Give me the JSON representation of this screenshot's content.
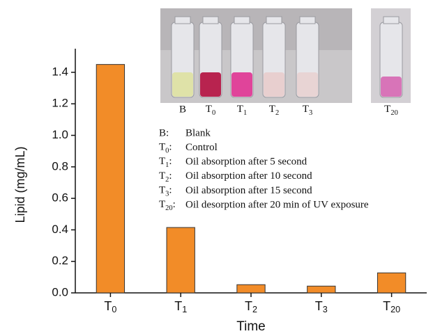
{
  "chart_data": {
    "type": "bar",
    "x_label": "Time",
    "y_label": "Lipid (mg/mL)",
    "categories": [
      "T0",
      "T1",
      "T2",
      "T3",
      "T20"
    ],
    "values": [
      1.45,
      0.415,
      0.052,
      0.043,
      0.127
    ],
    "color": "#f28c28",
    "ylim": [
      0,
      1.55
    ],
    "yticks": [
      {
        "value": 0,
        "label": "0.0"
      },
      {
        "value": 0.2,
        "label": "0.2"
      },
      {
        "value": 0.4,
        "label": "0.4"
      },
      {
        "value": 0.6,
        "label": "0.6"
      },
      {
        "value": 0.8,
        "label": "0.8"
      },
      {
        "value": 1.0,
        "label": "1.0"
      },
      {
        "value": 1.2,
        "label": "1.2"
      },
      {
        "value": 1.4,
        "label": "1.4"
      }
    ],
    "photo_labels": [
      "B",
      "T0",
      "T1",
      "T2",
      "T3",
      "T20"
    ],
    "legend": [
      {
        "key": "B:",
        "text": "Blank"
      },
      {
        "key": "T0:",
        "text": "Control"
      },
      {
        "key": "T1:",
        "text": "Oil absorption after 5 second"
      },
      {
        "key": "T2:",
        "text": "Oil absorption after 10 second"
      },
      {
        "key": "T3:",
        "text": "Oil absorption after 15 second"
      },
      {
        "key": "T20:",
        "text": "Oil desorption after 20 min of UV exposure"
      }
    ]
  }
}
